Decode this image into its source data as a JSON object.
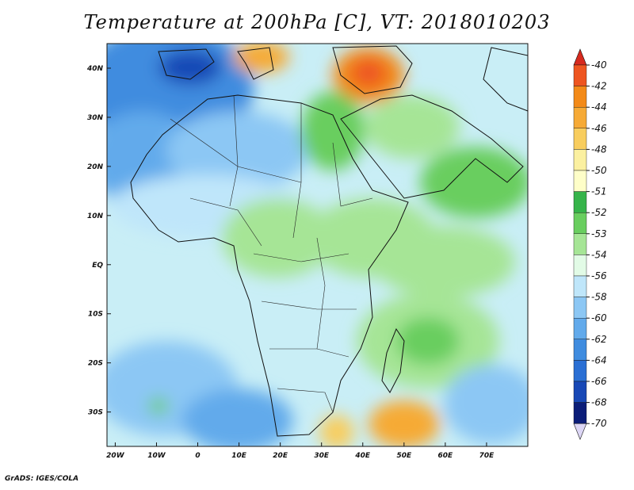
{
  "title": "Temperature at 200hPa [C], VT: 2018010203",
  "footer": "GrADS: IGES/COLA",
  "map": {
    "region": "Africa",
    "lon_range": [
      -22,
      80
    ],
    "lat_range": [
      -37,
      45
    ],
    "lon_ticks": [
      "20W",
      "10W",
      "0",
      "10E",
      "20E",
      "30E",
      "40E",
      "50E",
      "60E",
      "70E"
    ],
    "lat_ticks": [
      "40N",
      "30N",
      "20N",
      "10N",
      "EQ",
      "10S",
      "20S",
      "30S"
    ],
    "features": [
      "country-borders",
      "coastlines"
    ]
  },
  "colorbar": {
    "labels": [
      "-40",
      "-42",
      "-44",
      "-46",
      "-48",
      "-50",
      "-51",
      "-52",
      "-53",
      "-54",
      "-56",
      "-58",
      "-60",
      "-62",
      "-64",
      "-66",
      "-68",
      "-70"
    ],
    "colors": [
      "#d72a1e",
      "#ee5520",
      "#f38a18",
      "#f6aa36",
      "#f8cd5e",
      "#fbf0a0",
      "#fefec8",
      "#36b44a",
      "#69ce5f",
      "#a6e596",
      "#e2fbe6",
      "#bfe6fa",
      "#8cc7f4",
      "#62aaeb",
      "#3f8cdf",
      "#2a6fd4",
      "#1848b6",
      "#0b1d78",
      "#dcd6f5"
    ]
  }
}
